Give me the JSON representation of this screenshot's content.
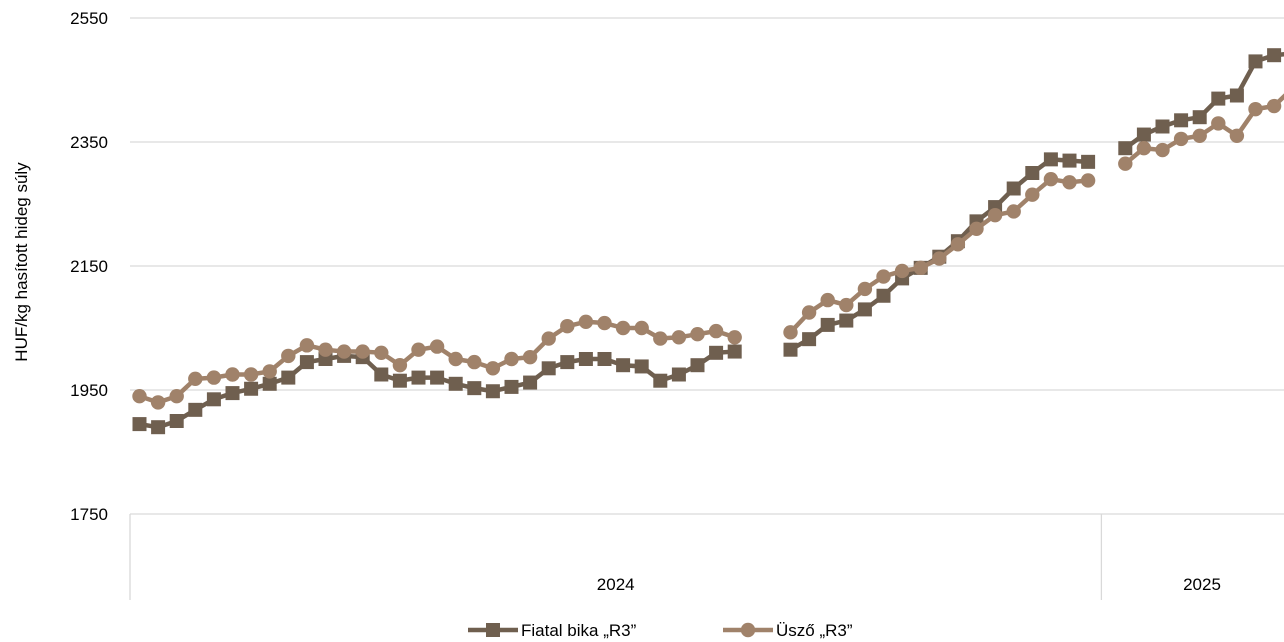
{
  "chart_data": {
    "type": "line",
    "title": "",
    "ylabel": "HUF/kg hasított hideg súly",
    "ylim": [
      1750,
      2550
    ],
    "yticks": [
      1750,
      1950,
      2150,
      2350,
      2550
    ],
    "grid": true,
    "legend_position": "bottom",
    "x_groups": [
      {
        "label": "2024",
        "weeks": 52
      },
      {
        "label": "2025",
        "weeks": 10
      }
    ],
    "series": [
      {
        "name": "Fiatal bika „R3”",
        "color": "#6f5f4f",
        "marker": "square",
        "segments": [
          {
            "start": 1,
            "values": [
              1895,
              1890,
              1900,
              1918,
              1935,
              1945,
              1952,
              1960,
              1970,
              1995,
              2000,
              2005,
              2003,
              1975,
              1965,
              1970,
              1970,
              1960,
              1953,
              1948,
              1955,
              1962,
              1985,
              1995,
              2000,
              2000,
              1990,
              1988,
              1965,
              1975,
              1990,
              2010,
              2012
            ]
          },
          {
            "start": 36,
            "values": [
              2015,
              2032,
              2055,
              2062,
              2080,
              2102,
              2130,
              2147,
              2165,
              2190,
              2222,
              2245,
              2275,
              2300,
              2322,
              2320,
              2318
            ]
          },
          {
            "start": 54,
            "values": [
              2340,
              2362,
              2375,
              2385,
              2390,
              2420,
              2425,
              2480,
              2490,
              2493
            ]
          }
        ]
      },
      {
        "name": "Üsző „R3”",
        "color": "#a0826a",
        "marker": "circle",
        "segments": [
          {
            "start": 1,
            "values": [
              1940,
              1930,
              1940,
              1968,
              1970,
              1975,
              1975,
              1980,
              2005,
              2022,
              2015,
              2012,
              2012,
              2010,
              1990,
              2015,
              2020,
              2000,
              1995,
              1985,
              2000,
              2003,
              2033,
              2053,
              2060,
              2058,
              2050,
              2050,
              2033,
              2035,
              2040,
              2045,
              2035
            ]
          },
          {
            "start": 36,
            "values": [
              2043,
              2075,
              2095,
              2087,
              2113,
              2133,
              2142,
              2147,
              2162,
              2185,
              2210,
              2232,
              2238,
              2265,
              2290,
              2285,
              2288
            ]
          },
          {
            "start": 54,
            "values": [
              2315,
              2340,
              2337,
              2355,
              2360,
              2380,
              2360,
              2403,
              2408,
              2437
            ]
          }
        ]
      }
    ]
  }
}
